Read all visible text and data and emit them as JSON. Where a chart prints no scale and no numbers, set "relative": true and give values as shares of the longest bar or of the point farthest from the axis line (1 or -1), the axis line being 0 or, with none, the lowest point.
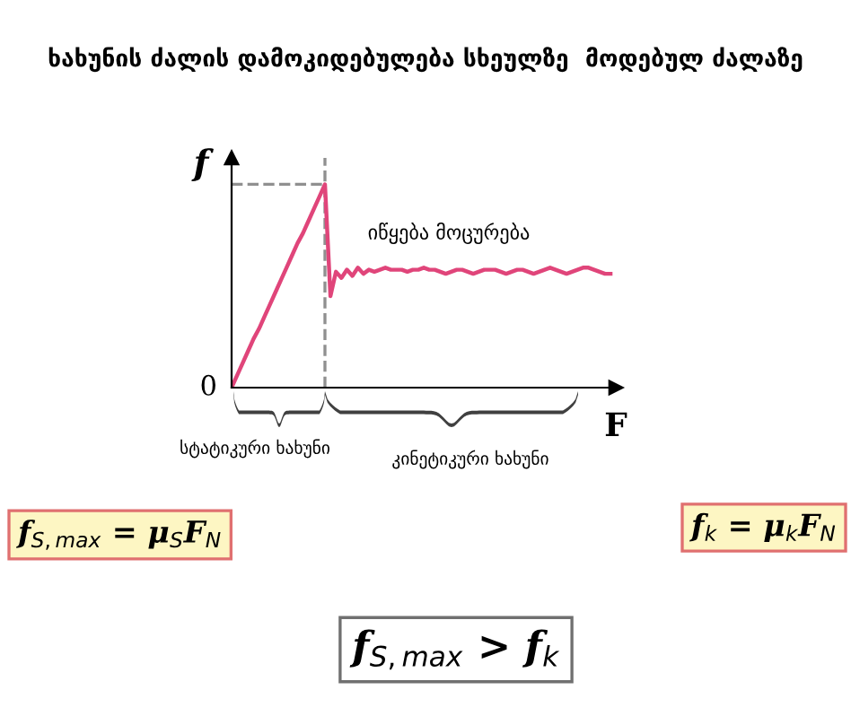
{
  "chart_data": {
    "type": "line",
    "title": "ხახუნის ძალის დამოკიდებულება სხეულზე  მოდებულ ძალაზე",
    "xlabel": "F",
    "ylabel": "f",
    "relative": true,
    "legend": false,
    "marker": "none",
    "line_style": "solid",
    "categories": [
      null,
      null,
      null,
      null,
      null,
      null,
      null,
      null,
      null,
      null,
      null,
      null,
      null,
      null,
      null,
      null,
      null,
      null,
      null,
      null,
      null,
      null,
      null,
      null,
      null,
      null,
      null,
      null,
      null,
      null,
      null,
      null,
      null,
      null,
      null,
      null,
      null,
      null,
      null,
      null,
      null,
      null,
      null,
      null,
      null,
      null,
      null,
      null,
      null,
      null,
      null,
      null,
      null,
      null,
      null,
      null,
      null,
      null,
      null,
      null,
      null,
      null,
      null,
      null,
      null,
      null,
      null,
      null,
      null,
      null
    ],
    "series": [
      {
        "color": "#e0457a",
        "values": [
          0,
          0.06,
          0.12,
          0.18,
          0.24,
          0.29,
          0.35,
          0.41,
          0.47,
          0.53,
          0.59,
          0.65,
          0.71,
          0.76,
          0.82,
          0.88,
          0.94,
          1.0,
          0.45,
          0.57,
          0.54,
          0.58,
          0.55,
          0.59,
          0.56,
          0.58,
          0.57,
          0.58,
          0.59,
          0.58,
          0.58,
          0.58,
          0.57,
          0.58,
          0.58,
          0.59,
          0.58,
          0.58,
          0.57,
          0.56,
          0.57,
          0.58,
          0.58,
          0.57,
          0.56,
          0.57,
          0.58,
          0.58,
          0.58,
          0.57,
          0.56,
          0.57,
          0.58,
          0.58,
          0.57,
          0.56,
          0.57,
          0.58,
          0.59,
          0.58,
          0.57,
          0.56,
          0.57,
          0.58,
          0.59,
          0.59,
          0.58,
          0.57,
          0.56,
          0.56
        ]
      }
    ],
    "ref_lines": [
      {
        "axis": "y",
        "value": 1.0,
        "color": "#909090",
        "line_style": "dashed"
      }
    ],
    "annotations": [
      "იწყება მოცურება",
      "სტატიკური ხახუნი",
      "კინეტიკური ხახუნი",
      "f$_{S,max}$ = μ$_{S}$F$_{N}$",
      "f$_{k}$ = μ$_{k}$F$_{N}$",
      "f$_{S,max}$ > f$_{k}$",
      "0"
    ]
  }
}
